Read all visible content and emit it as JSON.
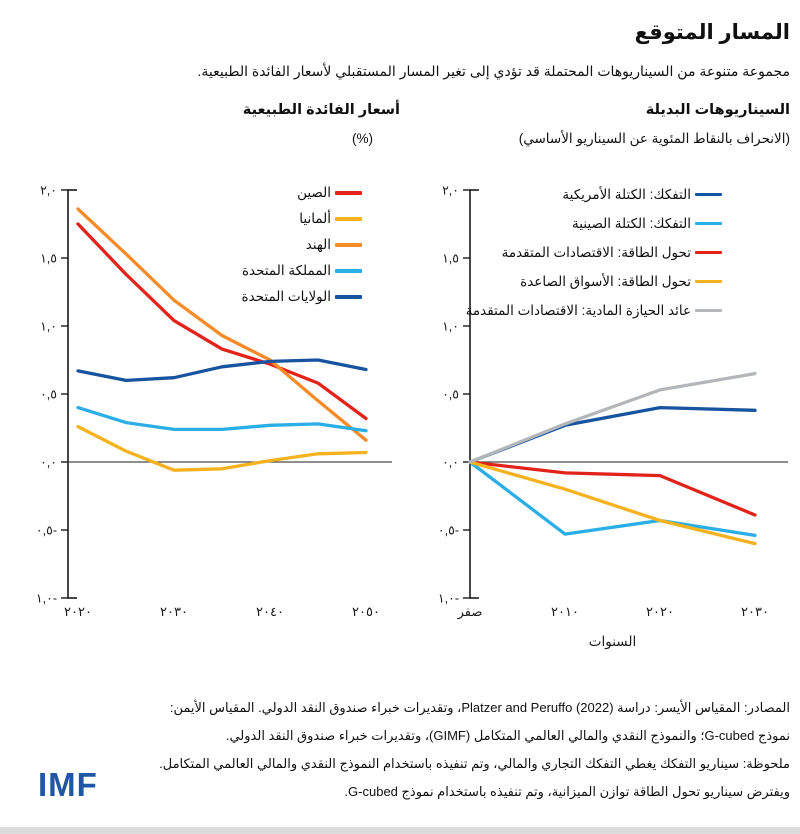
{
  "page": {
    "title": "المسار المتوقع",
    "subtitle": "مجموعة متنوعة من السيناريوهات المحتملة قد تؤدي إلى تغير المسار المستقبلي لأسعار الفائدة الطبيعية."
  },
  "colors": {
    "red": "#e2231a",
    "yellow": "#f5b21e",
    "orange": "#f68b28",
    "light_blue": "#2aaee5",
    "dark_blue": "#17549f",
    "gray": "#b4b7ba",
    "axis": "#1a1a1a",
    "zero_line": "#4a4a4a",
    "logo_blue": "#1f56a5"
  },
  "chart_data": [
    {
      "id": "natural-interest-rates",
      "type": "line",
      "title": "أسعار الفائدة الطبيعية",
      "subtitle": "(%)",
      "xlabel": "",
      "ylabel": "",
      "ylim": [
        -1.0,
        2.0
      ],
      "grid": false,
      "legend_position": "top-left-of-plot",
      "x": [
        2020,
        2025,
        2030,
        2035,
        2040,
        2045,
        2050
      ],
      "x_ticks": [
        2020,
        2030,
        2040,
        2050
      ],
      "x_tick_labels": [
        "٢٠٢٠",
        "٢٠٣٠",
        "٢٠٤٠",
        "٢٠٥٠"
      ],
      "y_ticks": [
        2.0,
        1.5,
        1.0,
        0.5,
        0.0,
        -0.5,
        -1.0
      ],
      "y_tick_labels": [
        "٢,٠",
        "١,٥",
        "١,٠",
        "٠,٥",
        "٠,٠",
        "٠,٥-",
        "١,٠-"
      ],
      "series": [
        {
          "name": "الصين",
          "color": "#e2231a",
          "values": [
            1.75,
            1.38,
            1.04,
            0.83,
            0.72,
            0.58,
            0.32
          ]
        },
        {
          "name": "ألمانيا",
          "color": "#f5b21e",
          "values": [
            0.26,
            0.08,
            -0.06,
            -0.05,
            0.01,
            0.06,
            0.07
          ]
        },
        {
          "name": "الهند",
          "color": "#f68b28",
          "values": [
            1.86,
            1.53,
            1.19,
            0.93,
            0.75,
            0.45,
            0.16
          ]
        },
        {
          "name": "المملكة المتحدة",
          "color": "#2aaee5",
          "values": [
            0.4,
            0.29,
            0.24,
            0.24,
            0.27,
            0.28,
            0.23
          ]
        },
        {
          "name": "الولايات المتحدة",
          "color": "#17549f",
          "values": [
            0.67,
            0.6,
            0.62,
            0.7,
            0.74,
            0.75,
            0.68
          ]
        }
      ]
    },
    {
      "id": "alternative-scenarios",
      "type": "line",
      "title": "السيناريوهات البديلة",
      "subtitle": "(الانحراف بالنقاط المئوية عن السيناريو الأساسي)",
      "xlabel": "السنوات",
      "ylabel": "",
      "ylim": [
        -1.0,
        2.0
      ],
      "grid": false,
      "legend_position": "top-right-of-plot",
      "x": [
        0,
        1,
        2,
        3
      ],
      "x_ticks": [
        0,
        1,
        2,
        3
      ],
      "x_tick_labels": [
        "صفر",
        "٢٠١٠",
        "٢٠٢٠",
        "٢٠٣٠"
      ],
      "y_ticks": [
        2.0,
        1.5,
        1.0,
        0.5,
        0.0,
        -0.5,
        -1.0
      ],
      "y_tick_labels": [
        "٢,٠",
        "١,٥",
        "١,٠",
        "٠,٥",
        "٠,٠",
        "٠,٥-",
        "١,٠-"
      ],
      "series": [
        {
          "name": "التفكك: الكتلة الأمريكية",
          "color": "#17549f",
          "values": [
            0,
            0.27,
            0.4,
            0.38
          ]
        },
        {
          "name": "التفكك: الكتلة الصينية",
          "color": "#2aaee5",
          "values": [
            0,
            -0.53,
            -0.43,
            -0.54
          ]
        },
        {
          "name": "تحول الطاقة: الاقتصادات المتقدمة",
          "color": "#e2231a",
          "values": [
            0,
            -0.08,
            -0.1,
            -0.39
          ]
        },
        {
          "name": "تحول الطاقة: الأسواق الصاعدة",
          "color": "#f5b21e",
          "values": [
            0,
            -0.2,
            -0.43,
            -0.6
          ]
        },
        {
          "name": "عائد الحيازة المادية: الاقتصادات المتقدمة",
          "color": "#b4b7ba",
          "values": [
            0,
            0.28,
            0.53,
            0.65
          ]
        }
      ]
    }
  ],
  "footer": {
    "lines": [
      "المصادر: المقياس الأيسر: دراسة Platzer and Peruffo (2022)، وتقديرات خبراء صندوق النقد الدولي. المقياس الأيمن:",
      "نموذج G-cubed؛ والنموذج النقدي والمالي العالمي المتكامل (GIMF)، وتقديرات خبراء صندوق النقد الدولي.",
      "ملحوظة: سيناريو التفكك يغطي التفكك التجاري والمالي، وتم تنفيذه باستخدام النموذج النقدي والمالي العالمي المتكامل.",
      "ويفترض سيناريو تحول الطاقة توازن الميزانية، وتم تنفيذه باستخدام نموذج G-cubed."
    ]
  },
  "logo": {
    "text": "IMF"
  }
}
